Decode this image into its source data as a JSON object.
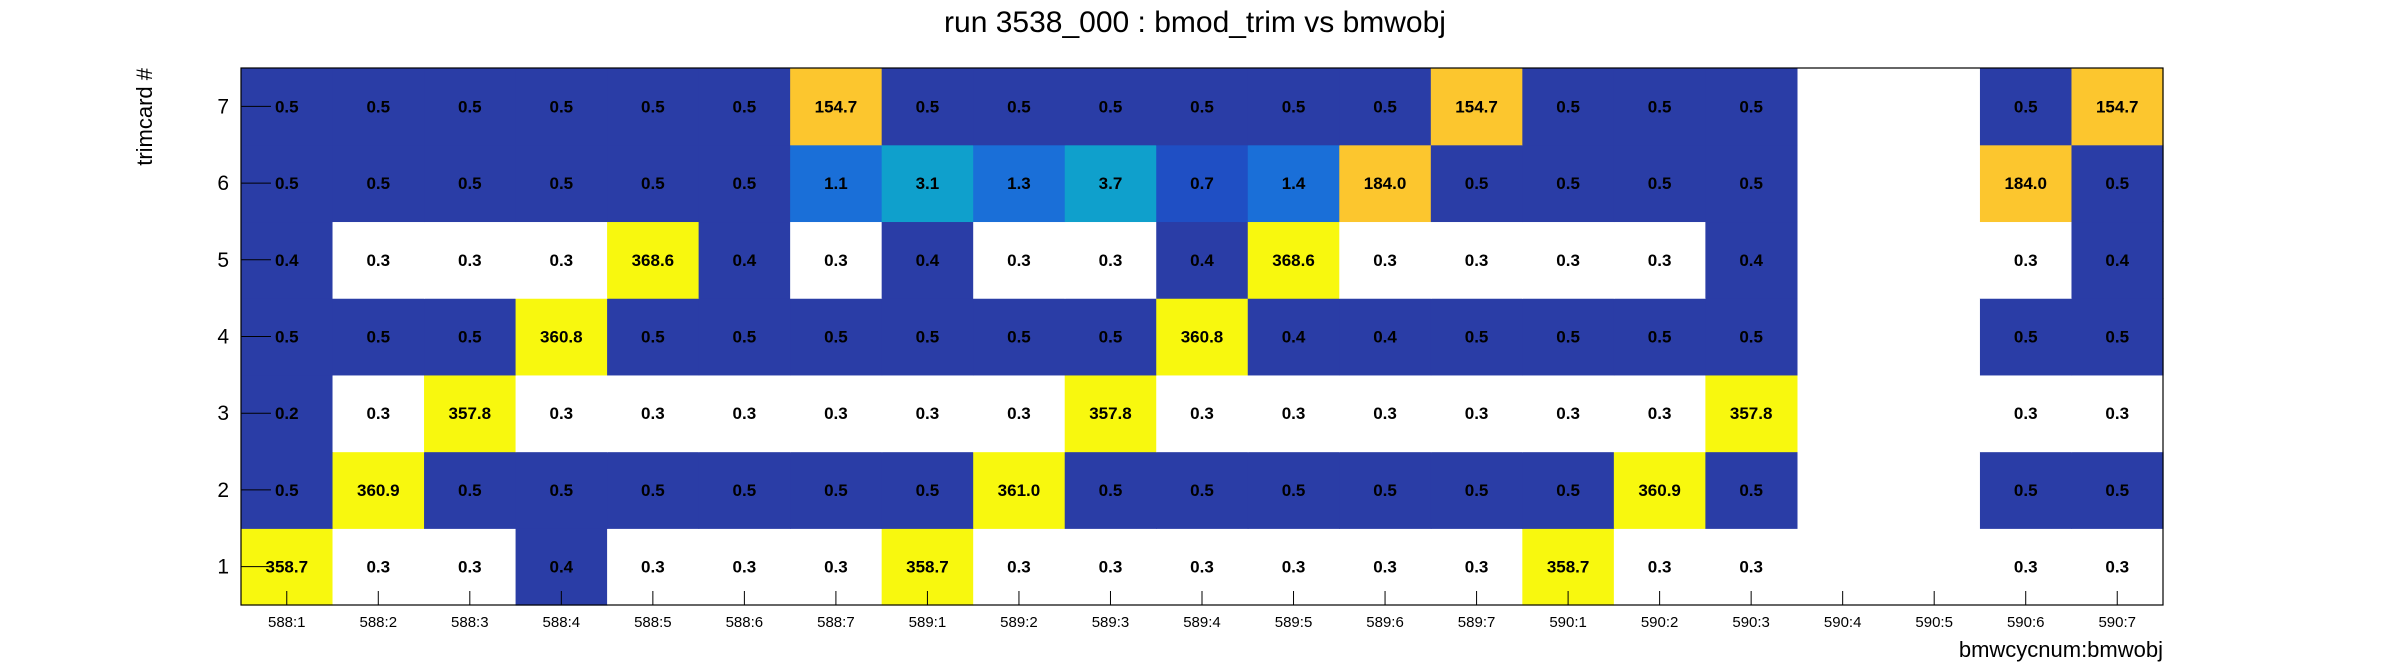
{
  "chart_data": {
    "type": "heatmap",
    "title": "run 3538_000 : bmod_trim vs bmwobj",
    "xlabel": "bmwcycnum:bmwobj",
    "ylabel": "trimcard #",
    "x_categories": [
      "588:1",
      "588:2",
      "588:3",
      "588:4",
      "588:5",
      "588:6",
      "588:7",
      "589:1",
      "589:2",
      "589:3",
      "589:4",
      "589:5",
      "589:6",
      "589:7",
      "590:1",
      "590:2",
      "590:3",
      "590:4",
      "590:5",
      "590:6",
      "590:7"
    ],
    "y_categories": [
      "1",
      "2",
      "3",
      "4",
      "5",
      "6",
      "7"
    ],
    "values": [
      [
        358.7,
        0.3,
        0.3,
        0.4,
        0.3,
        0.3,
        0.3,
        358.7,
        0.3,
        0.3,
        0.3,
        0.3,
        0.3,
        0.3,
        358.7,
        0.3,
        0.3,
        null,
        null,
        0.3,
        0.3
      ],
      [
        0.5,
        360.9,
        0.5,
        0.5,
        0.5,
        0.5,
        0.5,
        0.5,
        361.0,
        0.5,
        0.5,
        0.5,
        0.5,
        0.5,
        0.5,
        360.9,
        0.5,
        null,
        null,
        0.5,
        0.5
      ],
      [
        0.2,
        0.3,
        357.8,
        0.3,
        0.3,
        0.3,
        0.3,
        0.3,
        0.3,
        357.8,
        0.3,
        0.3,
        0.3,
        0.3,
        0.3,
        0.3,
        357.8,
        null,
        null,
        0.3,
        0.3
      ],
      [
        0.5,
        0.5,
        0.5,
        360.8,
        0.5,
        0.5,
        0.5,
        0.5,
        0.5,
        0.5,
        360.8,
        0.4,
        0.4,
        0.5,
        0.5,
        0.5,
        0.5,
        null,
        null,
        0.5,
        0.5
      ],
      [
        0.4,
        0.3,
        0.3,
        0.3,
        368.6,
        0.4,
        0.3,
        0.4,
        0.3,
        0.3,
        0.4,
        368.6,
        0.3,
        0.3,
        0.3,
        0.3,
        0.4,
        null,
        null,
        0.3,
        0.4
      ],
      [
        0.5,
        0.5,
        0.5,
        0.5,
        0.5,
        0.5,
        1.1,
        3.1,
        1.3,
        3.7,
        0.7,
        1.4,
        184.0,
        0.5,
        0.5,
        0.5,
        0.5,
        null,
        null,
        184.0,
        0.5
      ],
      [
        0.5,
        0.5,
        0.5,
        0.5,
        0.5,
        0.5,
        154.7,
        0.5,
        0.5,
        0.5,
        0.5,
        0.5,
        0.5,
        154.7,
        0.5,
        0.5,
        0.5,
        null,
        null,
        0.5,
        154.7
      ]
    ],
    "colors": {
      "0.2": "#2a3da6",
      "0.3": "#ffffff",
      "0.4": "#2a3da6",
      "0.5": "#2a3da6",
      "0.7": "#1f4fc4",
      "1.1": "#1a6fd8",
      "1.3": "#1a6fd8",
      "1.4": "#1a6fd8",
      "3.1": "#0fa0cc",
      "3.7": "#0fa0cc",
      "154.7": "#fcc62e",
      "184.0": "#fcc62e",
      "high": "#f8f80e"
    },
    "grid": false,
    "legend": "none"
  }
}
